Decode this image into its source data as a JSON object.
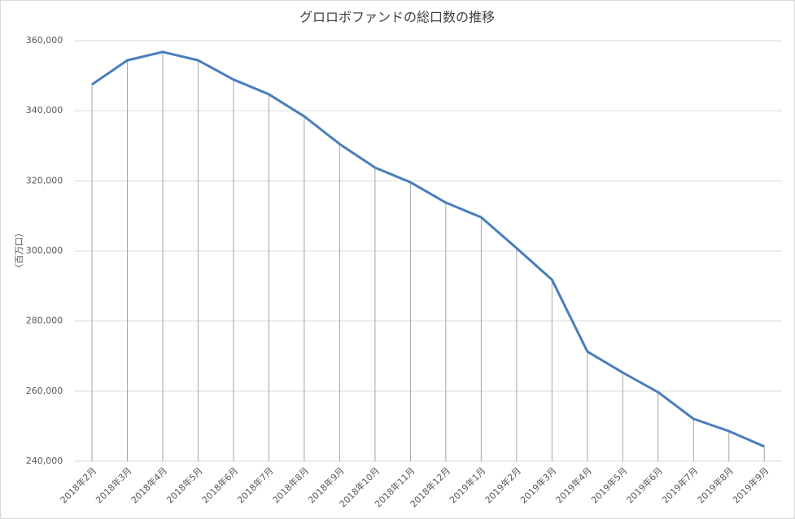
{
  "chart_data": {
    "type": "line",
    "title": "グロロボファンドの総口数の推移",
    "y_label": "（百万口）",
    "categories": [
      "2018年2月",
      "2018年3月",
      "2018年4月",
      "2018年5月",
      "2018年6月",
      "2018年7月",
      "2018年8月",
      "2018年9月",
      "2018年10月",
      "2018年11月",
      "2018年12月",
      "2019年1月",
      "2019年2月",
      "2019年3月",
      "2019年4月",
      "2019年5月",
      "2019年6月",
      "2019年7月",
      "2019年8月",
      "2019年9月"
    ],
    "values": [
      347500,
      354400,
      356800,
      354400,
      348900,
      344700,
      338400,
      330500,
      323800,
      319600,
      313800,
      309600,
      300800,
      291800,
      271300,
      265300,
      259700,
      252100,
      248600,
      244200
    ],
    "color": "#4a7ebb",
    "ylim": [
      240000,
      360000
    ],
    "yticks": [
      {
        "value": 240000,
        "label": "240,000"
      },
      {
        "value": 260000,
        "label": "260,000"
      },
      {
        "value": 280000,
        "label": "280,000"
      },
      {
        "value": 300000,
        "label": "300,000"
      },
      {
        "value": 320000,
        "label": "320,000"
      },
      {
        "value": 340000,
        "label": "340,000"
      },
      {
        "value": 360000,
        "label": "360,000"
      }
    ],
    "grid": true,
    "drop_lines": true
  }
}
